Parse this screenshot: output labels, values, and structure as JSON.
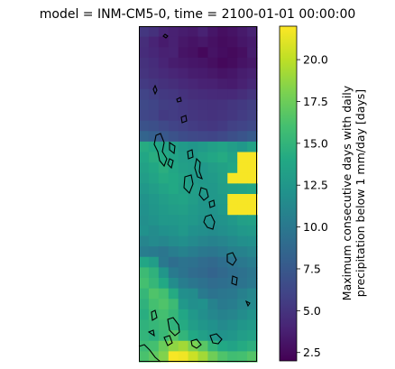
{
  "title": "model = INM-CM5-0, time = 2100-01-01 00:00:00",
  "chart_data": {
    "type": "heatmap",
    "title": "model = INM-CM5-0, time = 2100-01-01 00:00:00",
    "xlabel": "",
    "ylabel": "",
    "colormap": "viridis",
    "colorbar": {
      "label": "Maximum consecutive days with daily precipitation below 1 mm/day [days]",
      "range": [
        2.0,
        22.0
      ],
      "ticks": [
        2.5,
        5.0,
        7.5,
        10.0,
        12.5,
        15.0,
        17.5,
        20.0
      ],
      "tick_labels": [
        "2.5",
        "5.0",
        "7.5",
        "10.0",
        "12.5",
        "15.0",
        "17.5",
        "20.0"
      ]
    },
    "grid": {
      "rows": 32,
      "cols": 12,
      "row_order": "top-to-bottom"
    },
    "values": [
      [
        5.2,
        4.8,
        4.1,
        3.8,
        3.6,
        3.4,
        3.9,
        3.2,
        2.8,
        3.0,
        3.4,
        3.9
      ],
      [
        4.6,
        4.0,
        3.5,
        3.8,
        3.3,
        3.0,
        3.3,
        2.9,
        2.6,
        2.8,
        3.2,
        3.5
      ],
      [
        4.5,
        4.2,
        3.8,
        3.9,
        3.1,
        2.9,
        2.4,
        3.0,
        2.7,
        2.5,
        2.8,
        3.6
      ],
      [
        4.8,
        4.5,
        4.0,
        3.6,
        3.4,
        3.2,
        3.1,
        2.8,
        2.4,
        2.6,
        3.0,
        3.3
      ],
      [
        5.0,
        4.7,
        4.4,
        4.1,
        3.9,
        3.6,
        3.5,
        3.3,
        3.0,
        3.2,
        3.6,
        3.8
      ],
      [
        5.4,
        5.1,
        4.8,
        4.6,
        4.3,
        4.1,
        3.9,
        3.8,
        3.6,
        3.5,
        3.8,
        4.2
      ],
      [
        6.0,
        5.7,
        5.3,
        5.2,
        4.9,
        4.6,
        4.5,
        4.4,
        4.3,
        4.3,
        4.6,
        5.0
      ],
      [
        6.4,
        6.1,
        5.6,
        5.5,
        5.2,
        5.0,
        4.9,
        4.8,
        4.9,
        5.1,
        5.3,
        5.6
      ],
      [
        6.2,
        6.0,
        5.4,
        5.5,
        5.3,
        5.1,
        5.0,
        4.9,
        5.0,
        5.2,
        5.5,
        5.8
      ],
      [
        7.0,
        6.8,
        6.4,
        6.0,
        5.8,
        5.5,
        5.3,
        5.2,
        5.4,
        5.8,
        6.0,
        6.3
      ],
      [
        8.4,
        8.0,
        7.5,
        7.0,
        6.6,
        6.4,
        6.2,
        6.1,
        6.4,
        6.8,
        7.2,
        7.6
      ],
      [
        14.3,
        14.0,
        13.5,
        13.3,
        12.8,
        12.4,
        12.8,
        13.2,
        13.6,
        13.0,
        12.6,
        13.5
      ],
      [
        13.8,
        14.4,
        14.1,
        13.6,
        13.0,
        12.9,
        13.4,
        13.8,
        14.2,
        13.6,
        21.8,
        21.8
      ],
      [
        13.4,
        13.9,
        14.5,
        13.8,
        13.2,
        13.0,
        12.6,
        13.0,
        13.4,
        13.8,
        21.8,
        21.8
      ],
      [
        13.0,
        13.6,
        14.2,
        14.0,
        13.6,
        12.8,
        12.6,
        12.8,
        13.2,
        21.8,
        21.8,
        21.8
      ],
      [
        12.6,
        13.0,
        13.6,
        14.0,
        13.4,
        13.1,
        12.8,
        12.6,
        13.0,
        13.4,
        13.6,
        13.8
      ],
      [
        12.2,
        12.6,
        13.0,
        13.4,
        13.6,
        13.0,
        12.4,
        12.6,
        12.8,
        21.8,
        21.8,
        21.8
      ],
      [
        12.0,
        12.4,
        12.8,
        13.0,
        13.2,
        12.8,
        12.4,
        12.2,
        12.6,
        21.8,
        21.8,
        21.8
      ],
      [
        11.8,
        12.2,
        12.6,
        12.6,
        12.8,
        12.6,
        12.2,
        12.0,
        12.2,
        12.6,
        13.2,
        13.4
      ],
      [
        12.0,
        11.6,
        12.0,
        12.2,
        12.6,
        12.0,
        11.8,
        11.6,
        11.8,
        12.2,
        12.6,
        12.8
      ],
      [
        11.0,
        11.4,
        11.2,
        11.6,
        11.8,
        11.4,
        11.0,
        10.8,
        11.0,
        11.4,
        11.8,
        12.0
      ],
      [
        10.4,
        10.2,
        9.8,
        10.4,
        10.8,
        10.4,
        10.0,
        9.8,
        10.2,
        10.6,
        10.8,
        11.2
      ],
      [
        13.8,
        13.0,
        10.0,
        9.2,
        9.6,
        9.4,
        9.0,
        8.8,
        9.2,
        9.6,
        10.0,
        10.4
      ],
      [
        15.6,
        14.8,
        12.4,
        10.2,
        9.6,
        9.0,
        8.8,
        8.4,
        8.8,
        9.2,
        9.4,
        9.8
      ],
      [
        16.0,
        15.2,
        14.0,
        11.6,
        10.4,
        9.8,
        9.4,
        9.0,
        9.2,
        9.4,
        9.6,
        10.0
      ],
      [
        15.2,
        16.4,
        16.0,
        14.2,
        11.8,
        11.6,
        10.2,
        9.6,
        9.8,
        10.0,
        10.6,
        11.2
      ],
      [
        14.8,
        16.0,
        16.4,
        15.6,
        12.6,
        11.8,
        12.0,
        10.8,
        10.2,
        10.4,
        11.0,
        11.4
      ],
      [
        14.4,
        15.6,
        16.0,
        15.2,
        13.8,
        12.6,
        11.8,
        11.2,
        10.8,
        11.0,
        11.6,
        12.2
      ],
      [
        14.8,
        15.2,
        15.6,
        14.8,
        14.2,
        13.0,
        12.4,
        12.0,
        11.4,
        11.8,
        12.4,
        12.8
      ],
      [
        15.0,
        14.6,
        15.4,
        16.6,
        15.0,
        14.0,
        13.2,
        12.6,
        12.2,
        12.4,
        13.0,
        13.4
      ],
      [
        15.6,
        16.0,
        17.4,
        18.6,
        19.2,
        18.0,
        16.8,
        15.0,
        14.0,
        13.6,
        14.2,
        14.6
      ],
      [
        16.2,
        17.0,
        18.2,
        21.8,
        21.6,
        20.4,
        19.2,
        17.6,
        16.4,
        15.8,
        16.0,
        16.6
      ]
    ]
  }
}
